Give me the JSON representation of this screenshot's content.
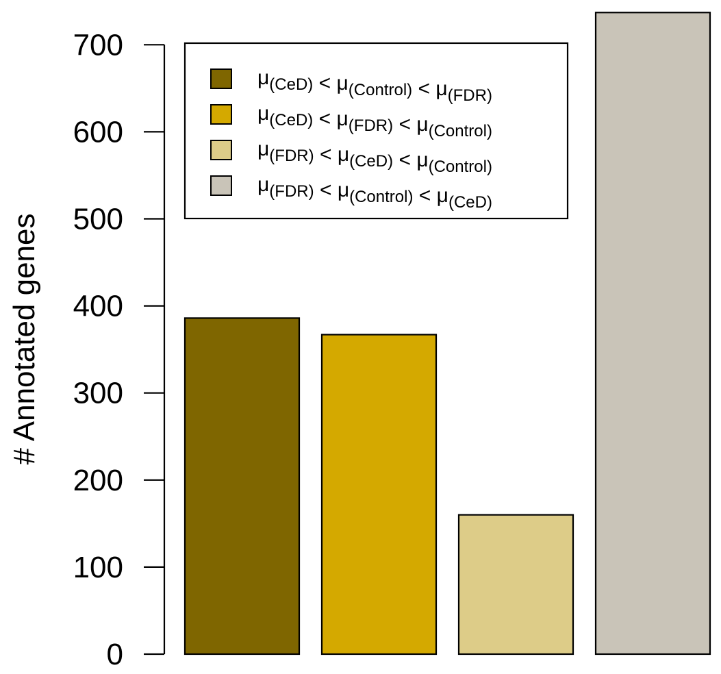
{
  "chart_data": {
    "type": "bar",
    "categories": [
      "μ(CeD) < μ(Control) < μ(FDR)",
      "μ(CeD) < μ(FDR) < μ(Control)",
      "μ(FDR) < μ(CeD) < μ(Control)",
      "μ(FDR) < μ(Control) < μ(CeD)"
    ],
    "values": [
      386,
      367,
      160,
      737
    ],
    "colors": [
      "#7f6600",
      "#d4a900",
      "#ddcc88",
      "#c9c4b8"
    ],
    "ylabel": "# Annotated genes",
    "xlabel": "",
    "ylim": [
      0,
      737
    ],
    "yticks": [
      0,
      100,
      200,
      300,
      400,
      500,
      600,
      700
    ],
    "legend": {
      "position": "top-left",
      "entries": [
        {
          "label": "μ(CeD) < μ(Control) < μ(FDR)",
          "parts": [
            [
              "μ",
              "(CeD)"
            ],
            [
              "μ",
              "(Control)"
            ],
            [
              "μ",
              "(FDR)"
            ]
          ]
        },
        {
          "label": "μ(CeD) < μ(FDR) < μ(Control)",
          "parts": [
            [
              "μ",
              "(CeD)"
            ],
            [
              "μ",
              "(FDR)"
            ],
            [
              "μ",
              "(Control)"
            ]
          ]
        },
        {
          "label": "μ(FDR) < μ(CeD) < μ(Control)",
          "parts": [
            [
              "μ",
              "(FDR)"
            ],
            [
              "μ",
              "(CeD)"
            ],
            [
              "μ",
              "(Control)"
            ]
          ]
        },
        {
          "label": "μ(FDR) < μ(Control) < μ(CeD)",
          "parts": [
            [
              "μ",
              "(FDR)"
            ],
            [
              "μ",
              "(Control)"
            ],
            [
              "μ",
              "(CeD)"
            ]
          ]
        }
      ]
    },
    "grid": false
  }
}
